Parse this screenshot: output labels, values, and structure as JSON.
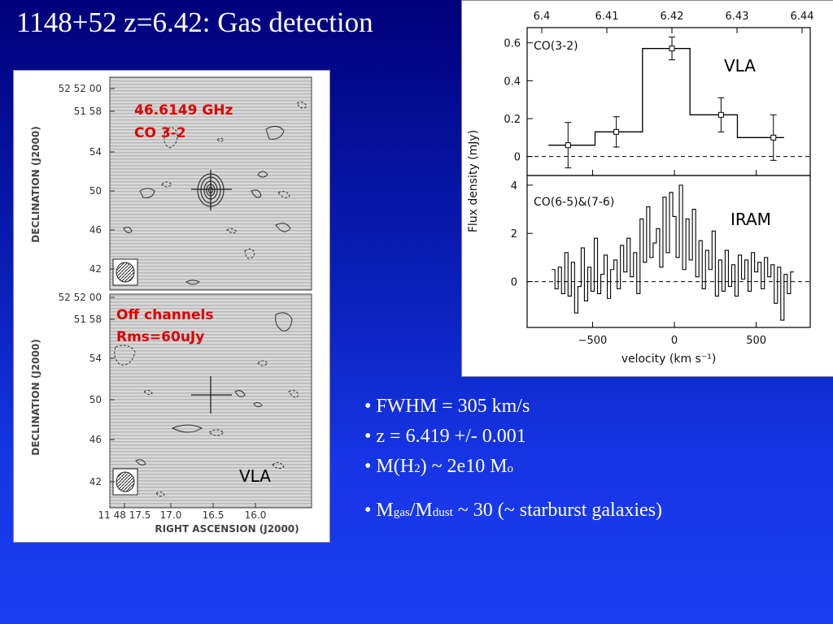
{
  "slide": {
    "title": "1148+52 z=6.42: Gas detection"
  },
  "maps": {
    "dec_axis_label": "DECLINATION (J2000)",
    "ra_axis_label": "RIGHT ASCENSION (J2000)",
    "dec_ticks": [
      "52 52 00",
      "51 58",
      "54",
      "50",
      "46",
      "42"
    ],
    "ra_ticks": [
      "11 48 17.5",
      "17.0",
      "16.5",
      "16.0"
    ],
    "top": {
      "line1": "46.6149 GHz",
      "line2": "CO 3-2"
    },
    "bottom": {
      "line1": "Off channels",
      "line2": "Rms=60uJy",
      "instrument": "VLA"
    },
    "annotation_color": "#e00000"
  },
  "chart_data": [
    {
      "type": "line",
      "title": "",
      "panel_label": "CO(3-2)",
      "annotation": "VLA",
      "xlabel": "velocity (km s⁻¹)",
      "ylabel": "Flux density (mJy)",
      "top_axis_label": "",
      "top_axis_ticks": [
        "6.4",
        "6.41",
        "6.42",
        "6.43",
        "6.44"
      ],
      "xlim": [
        -900,
        830
      ],
      "ylim": [
        -0.1,
        0.68
      ],
      "yticks": [
        0,
        0.2,
        0.4,
        0.6
      ],
      "step_edges": [
        -770,
        -485,
        -195,
        95,
        385,
        670
      ],
      "step_levels": [
        0.06,
        0.13,
        0.57,
        0.22,
        0.1
      ],
      "points": [
        {
          "x": -650,
          "y": 0.06,
          "err": 0.12
        },
        {
          "x": -355,
          "y": 0.13,
          "err": 0.08
        },
        {
          "x": -15,
          "y": 0.57,
          "err": 0.06
        },
        {
          "x": 285,
          "y": 0.22,
          "err": 0.09
        },
        {
          "x": 605,
          "y": 0.1,
          "err": 0.12
        }
      ]
    },
    {
      "type": "line",
      "title": "",
      "panel_label": "CO(6-5)&(7-6)",
      "annotation": "IRAM",
      "xlabel": "velocity (km s⁻¹)",
      "ylabel": "Flux density (mJy)",
      "xlim": [
        -900,
        830
      ],
      "ylim": [
        -1.9,
        4.4
      ],
      "yticks": [
        0,
        2,
        4
      ],
      "xticks": [
        -500,
        0,
        500
      ],
      "x": [
        -740,
        -720,
        -700,
        -680,
        -660,
        -640,
        -620,
        -600,
        -580,
        -560,
        -540,
        -520,
        -500,
        -480,
        -460,
        -440,
        -420,
        -400,
        -380,
        -360,
        -340,
        -320,
        -300,
        -280,
        -260,
        -240,
        -220,
        -200,
        -180,
        -160,
        -140,
        -120,
        -100,
        -80,
        -60,
        -40,
        -20,
        0,
        20,
        40,
        60,
        80,
        100,
        120,
        140,
        160,
        180,
        200,
        220,
        240,
        260,
        280,
        300,
        320,
        340,
        360,
        380,
        400,
        420,
        440,
        460,
        480,
        500,
        520,
        540,
        560,
        580,
        600,
        620,
        640,
        660,
        680,
        700,
        720
      ],
      "values": [
        0.5,
        -0.3,
        0.6,
        -0.5,
        1.2,
        -0.6,
        0.8,
        -1.3,
        -0.2,
        1.4,
        -0.8,
        0.6,
        -0.4,
        1.8,
        -0.5,
        0.3,
        1.1,
        -0.7,
        0.5,
        0.9,
        -0.3,
        1.5,
        0.4,
        1.8,
        0.2,
        1.2,
        -0.5,
        2.6,
        0.8,
        3.1,
        1.0,
        1.6,
        2.2,
        0.6,
        3.5,
        1.2,
        3.7,
        2.7,
        1.0,
        4.0,
        0.5,
        2.6,
        0.9,
        3.0,
        0.2,
        1.7,
        -0.3,
        1.3,
        0.5,
        2.1,
        -0.6,
        0.9,
        -0.4,
        1.3,
        -0.2,
        0.7,
        -0.6,
        1.1,
        0.1,
        0.9,
        -0.4,
        1.2,
        0.4,
        0.8,
        -0.3,
        1.0,
        0.2,
        0.7,
        -0.9,
        0.6,
        -1.6,
        0.3,
        -0.5,
        0.4
      ]
    }
  ],
  "bullets": {
    "b1": "• FWHM = 305 km/s",
    "b2": "• z = 6.419 +/- 0.001",
    "b3_pre": "• M(H",
    "b3_sub": "2",
    "b3_post": ") ~ 2e10 M",
    "b3_sub2": "o",
    "b4_pre": "• M",
    "b4_sub1": "gas",
    "b4_mid": "/M",
    "b4_sub2": "dust",
    "b4_post": " ~ 30  (~ starburst galaxies)"
  }
}
